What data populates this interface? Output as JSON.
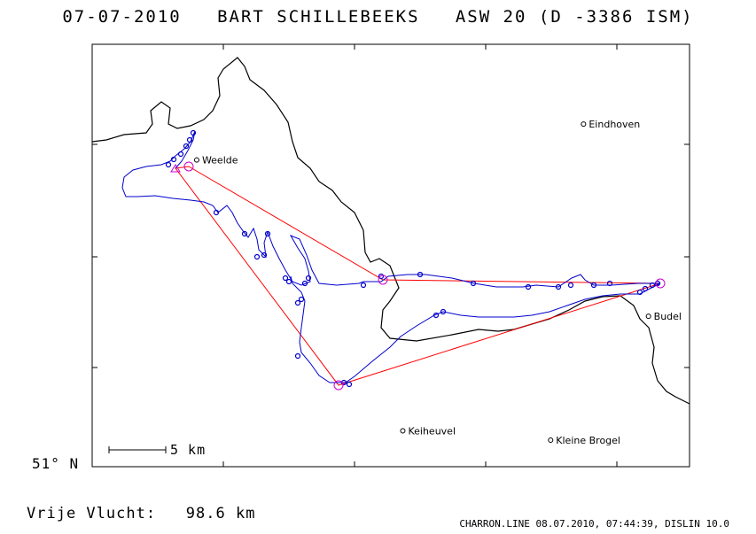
{
  "title": "07-07-2010   BART SCHILLEBEEKS   ASW 20 (D -3386 ISM)",
  "cities": [
    {
      "name": "Eindhoven",
      "lon": 5.478,
      "lat": 51.441
    },
    {
      "name": "Weelde",
      "lon": 4.96,
      "lat": 51.41
    },
    {
      "name": "Budel",
      "lon": 5.565,
      "lat": 51.275
    },
    {
      "name": "Keiheuvel",
      "lon": 5.236,
      "lat": 51.176
    },
    {
      "name": "Kleine Brogel",
      "lon": 5.434,
      "lat": 51.168
    }
  ],
  "map": {
    "lon_range": [
      4.82,
      5.62
    ],
    "lat_range": [
      51.145,
      51.51
    ],
    "colors": {
      "border": "#000000",
      "track": "#0000cc",
      "task": "#ff0000",
      "turnpoint": "#cc00cc"
    }
  },
  "lat_label": "51° N",
  "scale_label": "5 km",
  "distance_label": "Vrije Vlucht:",
  "distance_value": "98.6 km",
  "footer": "CHARRON.LINE 08.07.2010, 07:44:39, DISLIN 10.0"
}
